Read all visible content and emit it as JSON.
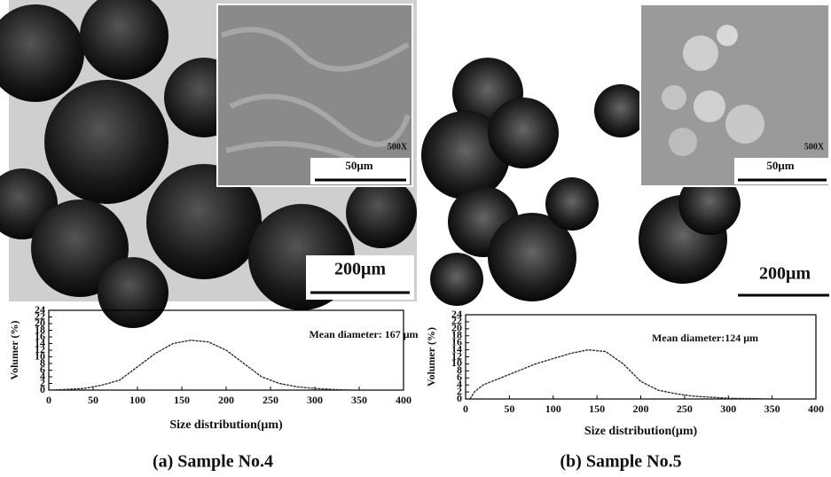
{
  "chart_data": [
    {
      "type": "line",
      "caption": "(a) Sample No.4",
      "annotation": "Mean diameter: 167 μm",
      "xlabel": "Size distribution(μm)",
      "ylabel": "Volumer (%)",
      "x": [
        0,
        20,
        40,
        50,
        60,
        80,
        100,
        120,
        140,
        160,
        180,
        200,
        220,
        240,
        260,
        280,
        300,
        320,
        340
      ],
      "series": [
        {
          "color": "#222",
          "values": [
            0,
            0.2,
            0.5,
            1,
            1.5,
            3,
            7,
            11,
            14,
            15,
            14.5,
            12,
            8,
            4,
            2,
            1,
            0.5,
            0.2,
            0
          ]
        }
      ],
      "xlim": [
        0,
        400
      ],
      "xticks": [
        0,
        50,
        100,
        150,
        200,
        250,
        300,
        350,
        400
      ],
      "ylim": [
        0,
        24
      ],
      "yticks": [
        0,
        2,
        4,
        6,
        8,
        10,
        12,
        14,
        16,
        18,
        20,
        22,
        24
      ]
    },
    {
      "type": "line",
      "caption": "(b) Sample No.5",
      "annotation": "Mean diameter:124 μm",
      "xlabel": "Size distribution(μm)",
      "ylabel": "Volumer (%)",
      "x": [
        5,
        10,
        20,
        40,
        60,
        80,
        100,
        120,
        140,
        160,
        180,
        200,
        220,
        240,
        260,
        300,
        350
      ],
      "series": [
        {
          "color": "#222",
          "values": [
            0,
            2,
            4,
            6,
            8,
            10,
            11.5,
            13,
            14,
            13.5,
            10,
            5,
            2.5,
            1.5,
            0.8,
            0.2,
            0
          ]
        }
      ],
      "xlim": [
        0,
        400
      ],
      "xticks": [
        0,
        50,
        100,
        150,
        200,
        250,
        300,
        350,
        400
      ],
      "ylim": [
        0,
        24
      ],
      "yticks": [
        0,
        2,
        4,
        6,
        8,
        10,
        12,
        14,
        16,
        18,
        20,
        22,
        24
      ]
    }
  ],
  "micrographs": [
    {
      "magnification": "500X",
      "inset_scale": "50μm",
      "scale": "200μm"
    },
    {
      "magnification": "500X",
      "inset_scale": "50μm",
      "scale": "200μm"
    }
  ]
}
